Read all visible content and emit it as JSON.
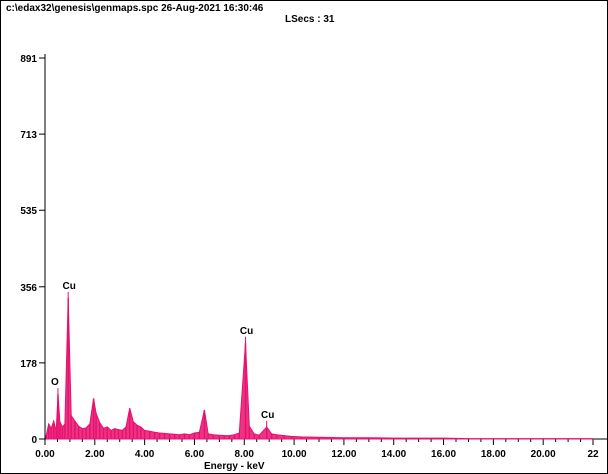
{
  "header": {
    "file_line": "c:\\edax32\\genesis\\genmaps.spc  26-Aug-2021 16:30:46",
    "lsecs_line": "LSecs :  31"
  },
  "chart_data": {
    "type": "line",
    "title": "",
    "xlabel": "Energy - keV",
    "ylabel": "",
    "xlim": [
      0,
      22
    ],
    "ylim": [
      0,
      891
    ],
    "x_ticks": [
      0,
      2,
      4,
      6,
      8,
      10,
      12,
      14,
      16,
      18,
      20,
      22
    ],
    "x_tick_labels": [
      "0.00",
      "2.00",
      "4.00",
      "6.00",
      "8.00",
      "10.00",
      "12.00",
      "14.00",
      "16.00",
      "18.00",
      "20.00",
      "22"
    ],
    "y_ticks": [
      0,
      178,
      356,
      535,
      713,
      891
    ],
    "y_tick_labels": [
      "0",
      "178",
      "356",
      "535",
      "713",
      "891"
    ],
    "series": [
      {
        "color": "#e8106e",
        "x": [
          0.05,
          0.15,
          0.25,
          0.35,
          0.45,
          0.52,
          0.6,
          0.7,
          0.8,
          0.93,
          1.05,
          1.2,
          1.35,
          1.5,
          1.65,
          1.8,
          1.95,
          2.05,
          2.2,
          2.35,
          2.5,
          2.65,
          2.8,
          2.95,
          3.1,
          3.25,
          3.4,
          3.55,
          3.7,
          3.85,
          4.0,
          4.2,
          4.4,
          4.6,
          4.8,
          5.0,
          5.2,
          5.4,
          5.6,
          5.8,
          6.0,
          6.2,
          6.4,
          6.55,
          6.75,
          7.0,
          7.2,
          7.4,
          7.6,
          7.8,
          8.05,
          8.2,
          8.4,
          8.6,
          8.9,
          9.1,
          9.3,
          9.6,
          9.9,
          10.3,
          11.0,
          12.0,
          13.0,
          14.0,
          15.0,
          16.0,
          17.0,
          18.0,
          19.0,
          20.0,
          21.0,
          22.0
        ],
        "y": [
          8,
          35,
          25,
          42,
          18,
          105,
          40,
          28,
          35,
          330,
          55,
          42,
          30,
          24,
          26,
          35,
          95,
          60,
          38,
          25,
          28,
          20,
          24,
          22,
          20,
          28,
          72,
          40,
          32,
          28,
          20,
          18,
          16,
          14,
          13,
          12,
          11,
          10,
          12,
          10,
          14,
          16,
          68,
          12,
          10,
          9,
          8,
          8,
          10,
          14,
          225,
          30,
          12,
          9,
          28,
          12,
          10,
          8,
          6,
          5,
          4,
          3,
          3,
          2,
          2,
          2,
          1,
          1,
          1,
          1,
          1,
          1
        ]
      }
    ],
    "annotations": [
      {
        "text": "O",
        "x": 0.52,
        "y": 105
      },
      {
        "text": "Cu",
        "x": 0.93,
        "y": 330
      },
      {
        "text": "Cu",
        "x": 8.05,
        "y": 225
      },
      {
        "text": "Cu",
        "x": 8.9,
        "y": 28
      }
    ]
  }
}
